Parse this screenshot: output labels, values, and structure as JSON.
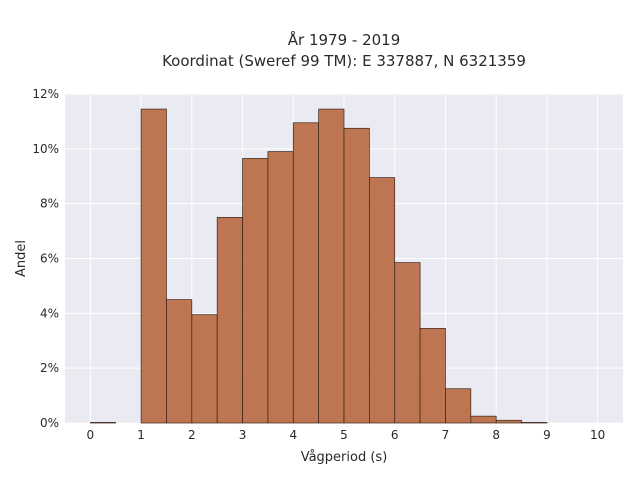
{
  "chart_data": {
    "type": "bar",
    "title_lines": [
      "År 1979 - 2019",
      "Koordinat (Sweref 99 TM): E 337887, N 6321359"
    ],
    "xlabel": "Vågperiod (s)",
    "ylabel": "Andel",
    "xlim": [
      -0.5,
      10.5
    ],
    "ylim": [
      0,
      12
    ],
    "x_ticks": [
      0,
      1,
      2,
      3,
      4,
      5,
      6,
      7,
      8,
      9,
      10
    ],
    "x_tick_labels": [
      "0",
      "1",
      "2",
      "3",
      "4",
      "5",
      "6",
      "7",
      "8",
      "9",
      "10"
    ],
    "y_ticks": [
      0,
      2,
      4,
      6,
      8,
      10,
      12
    ],
    "y_tick_labels": [
      "0%",
      "2%",
      "4%",
      "6%",
      "8%",
      "10%",
      "12%"
    ],
    "bin_width": 0.5,
    "bins": [
      {
        "x0": 0.0,
        "value": 0.02
      },
      {
        "x0": 1.0,
        "value": 11.45
      },
      {
        "x0": 1.5,
        "value": 4.5
      },
      {
        "x0": 2.0,
        "value": 3.95
      },
      {
        "x0": 2.5,
        "value": 7.5
      },
      {
        "x0": 3.0,
        "value": 9.65
      },
      {
        "x0": 3.5,
        "value": 9.9
      },
      {
        "x0": 4.0,
        "value": 10.95
      },
      {
        "x0": 4.5,
        "value": 11.45
      },
      {
        "x0": 5.0,
        "value": 10.75
      },
      {
        "x0": 5.5,
        "value": 8.95
      },
      {
        "x0": 6.0,
        "value": 5.85
      },
      {
        "x0": 6.5,
        "value": 3.45
      },
      {
        "x0": 7.0,
        "value": 1.25
      },
      {
        "x0": 7.5,
        "value": 0.25
      },
      {
        "x0": 8.0,
        "value": 0.1
      },
      {
        "x0": 8.5,
        "value": 0.02
      }
    ],
    "grid": true,
    "colors": {
      "bar": "#b8693f",
      "bar_edge": "#3a2418",
      "plot_background": "#eaeaf2",
      "grid": "#ffffff"
    }
  }
}
